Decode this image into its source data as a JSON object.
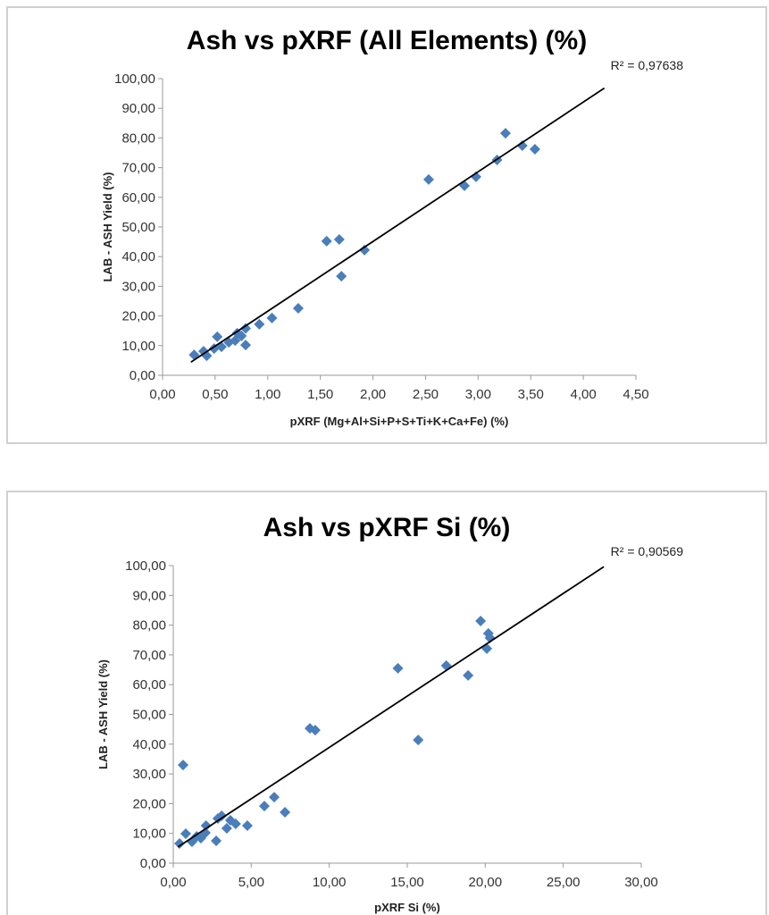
{
  "chart_data": [
    {
      "type": "scatter",
      "title": "Ash vs pXRF (All Elements) (%)",
      "xlabel": "pXRF (Mg+Al+Si+P+S+Ti+K+Ca+Fe) (%)",
      "ylabel": "LAB - ASH Yield (%)",
      "xlim": [
        0,
        4.5
      ],
      "ylim": [
        0,
        100
      ],
      "xticks": [
        "0,00",
        "0,50",
        "1,00",
        "1,50",
        "2,00",
        "2,50",
        "3,00",
        "3,50",
        "4,00",
        "4,50"
      ],
      "yticks": [
        "0,00",
        "10,00",
        "20,00",
        "30,00",
        "40,00",
        "50,00",
        "60,00",
        "70,00",
        "80,00",
        "90,00",
        "100,00"
      ],
      "marker_color": "#4a7ebb",
      "trendline": {
        "type": "linear",
        "slope": 23.5,
        "intercept": -1.9,
        "x_range": [
          0.27,
          4.2
        ],
        "label": "R² = 0,97638"
      },
      "points": [
        [
          0.3,
          6.9
        ],
        [
          0.39,
          8.1
        ],
        [
          0.42,
          6.6
        ],
        [
          0.49,
          9.0
        ],
        [
          0.52,
          13.0
        ],
        [
          0.56,
          9.6
        ],
        [
          0.63,
          11.1
        ],
        [
          0.69,
          11.7
        ],
        [
          0.71,
          14.2
        ],
        [
          0.75,
          13.3
        ],
        [
          0.79,
          15.8
        ],
        [
          0.79,
          10.2
        ],
        [
          0.92,
          17.2
        ],
        [
          1.04,
          19.3
        ],
        [
          1.29,
          22.6
        ],
        [
          1.56,
          45.2
        ],
        [
          1.68,
          45.8
        ],
        [
          1.7,
          33.4
        ],
        [
          1.92,
          42.2
        ],
        [
          2.53,
          66.0
        ],
        [
          2.87,
          63.9
        ],
        [
          2.98,
          66.9
        ],
        [
          3.18,
          72.6
        ],
        [
          3.26,
          81.6
        ],
        [
          3.42,
          77.4
        ],
        [
          3.54,
          76.2
        ]
      ]
    },
    {
      "type": "scatter",
      "title": "Ash vs pXRF Si (%)",
      "xlabel": "pXRF Si (%)",
      "ylabel": "LAB - ASH Yield (%)",
      "xlim": [
        0,
        30
      ],
      "ylim": [
        0,
        100
      ],
      "xticks": [
        "0,00",
        "5,00",
        "10,00",
        "15,00",
        "20,00",
        "25,00",
        "30,00"
      ],
      "yticks": [
        "0,00",
        "10,00",
        "20,00",
        "30,00",
        "40,00",
        "50,00",
        "60,00",
        "70,00",
        "80,00",
        "90,00",
        "100,00"
      ],
      "marker_color": "#4a7ebb",
      "trendline": {
        "type": "linear",
        "slope": 3.45,
        "intercept": 4.4,
        "x_range": [
          0.3,
          27.6
        ],
        "label": "R² = 0,90569"
      },
      "points": [
        [
          0.4,
          6.6
        ],
        [
          0.63,
          33.0
        ],
        [
          0.8,
          9.9
        ],
        [
          1.2,
          7.2
        ],
        [
          1.5,
          9.0
        ],
        [
          1.77,
          8.4
        ],
        [
          2.06,
          10.2
        ],
        [
          2.1,
          12.6
        ],
        [
          2.75,
          7.5
        ],
        [
          2.86,
          15.0
        ],
        [
          3.1,
          15.9
        ],
        [
          3.43,
          11.7
        ],
        [
          3.66,
          14.4
        ],
        [
          4.0,
          13.2
        ],
        [
          4.75,
          12.6
        ],
        [
          5.84,
          19.2
        ],
        [
          6.47,
          22.2
        ],
        [
          7.16,
          17.1
        ],
        [
          8.76,
          45.3
        ],
        [
          9.1,
          44.7
        ],
        [
          14.4,
          65.5
        ],
        [
          15.7,
          41.4
        ],
        [
          17.5,
          66.4
        ],
        [
          18.9,
          63.1
        ],
        [
          19.7,
          81.4
        ],
        [
          20.2,
          77.2
        ],
        [
          20.3,
          75.7
        ],
        [
          20.1,
          72.1
        ]
      ]
    }
  ]
}
